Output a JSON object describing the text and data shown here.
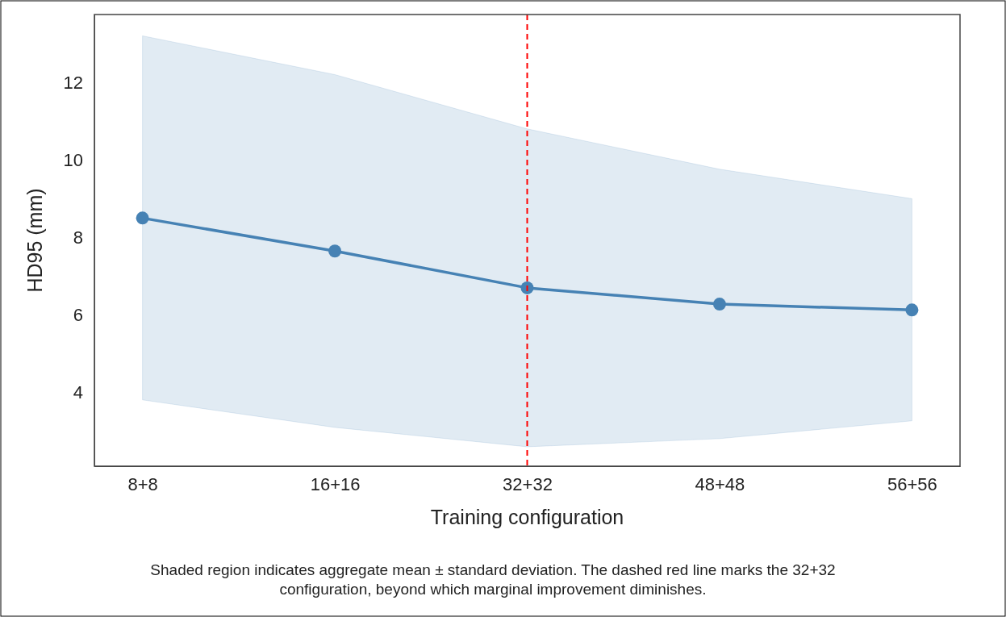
{
  "chart_data": {
    "type": "line",
    "xlabel": "Training configuration",
    "ylabel": "HD95 (mm)",
    "categories": [
      "8+8",
      "16+16",
      "32+32",
      "48+48",
      "56+56"
    ],
    "series": [
      {
        "color": "#4682b4",
        "values": [
          8.5,
          7.65,
          6.7,
          6.28,
          6.13
        ],
        "lower": [
          3.81,
          3.1,
          2.6,
          2.81,
          3.27
        ],
        "upper": [
          13.2,
          12.2,
          10.8,
          9.76,
          9.0
        ]
      }
    ],
    "ylim": [
      2.1,
      13.75
    ],
    "yticks": [
      4,
      6,
      8,
      10,
      12
    ],
    "ref_lines": [
      {
        "axis": "x",
        "value": "32+32",
        "color": "#ff0000",
        "line_style": "dashed"
      }
    ],
    "marker": "circle",
    "line_style": "solid",
    "grid": false,
    "annotations": [
      "Shaded region indicates aggregate mean ± standard deviation. The dashed red line marks the 32+32 configuration, beyond which marginal improvement diminishes."
    ]
  }
}
